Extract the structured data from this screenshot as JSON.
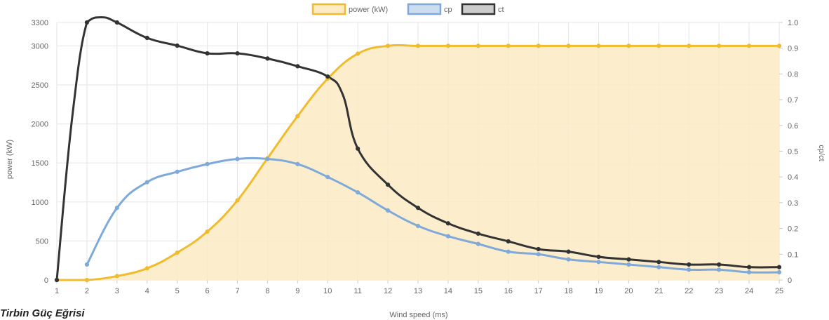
{
  "caption": "Tirbin Güç Eğrisi",
  "colors": {
    "power_line": "#f0bc2e",
    "power_fill": "#fcebc4",
    "cp_line": "#7fa9d8",
    "cp_fill": "#cdddf0",
    "ct_line": "#333333",
    "ct_fill": "#cccccc",
    "grid": "#e5e5e5",
    "text": "#666666"
  },
  "chart_data": {
    "type": "line",
    "xlabel": "Wind speed (ms)",
    "ylabel_left": "power (kW)",
    "ylabel_right": "cp/ct",
    "x": [
      1,
      2,
      3,
      4,
      5,
      6,
      7,
      8,
      9,
      10,
      11,
      12,
      13,
      14,
      15,
      16,
      17,
      18,
      19,
      20,
      21,
      22,
      23,
      24,
      25
    ],
    "x_ticks": [
      "1",
      "2",
      "3",
      "4",
      "5",
      "6",
      "7",
      "8",
      "9",
      "10",
      "11",
      "12",
      "13",
      "14",
      "15",
      "16",
      "17",
      "18",
      "19",
      "20",
      "21",
      "22",
      "23",
      "24",
      "25"
    ],
    "y_left_ticks": [
      0,
      500,
      1000,
      1500,
      2000,
      2500,
      3000,
      3300
    ],
    "y_left_tick_labels": [
      "0",
      "500",
      "1000",
      "1500",
      "2000",
      "2500",
      "3000",
      "3300"
    ],
    "y_left_range": [
      0,
      3300
    ],
    "y_right_ticks": [
      0,
      0.1,
      0.2,
      0.3,
      0.4,
      0.5,
      0.6,
      0.7,
      0.8,
      0.9,
      1.0
    ],
    "y_right_tick_labels": [
      "0",
      "0.1",
      "0.2",
      "0.3",
      "0.4",
      "0.5",
      "0.6",
      "0.7",
      "0.8",
      "0.9",
      "1.0"
    ],
    "y_right_range": [
      0,
      1.0
    ],
    "grid": true,
    "legend_position": "top-center",
    "series": [
      {
        "name": "power (kW)",
        "axis": "left",
        "fill": true,
        "x": [
          1,
          2,
          3,
          4,
          5,
          6,
          7,
          8,
          9,
          10,
          11,
          12,
          13,
          14,
          15,
          16,
          17,
          18,
          19,
          20,
          21,
          22,
          23,
          24,
          25
        ],
        "values": [
          0,
          0,
          50,
          150,
          350,
          620,
          1020,
          1560,
          2100,
          2580,
          2900,
          3000,
          3000,
          3000,
          3000,
          3000,
          3000,
          3000,
          3000,
          3000,
          3000,
          3000,
          3000,
          3000,
          3000
        ]
      },
      {
        "name": "cp",
        "axis": "right",
        "fill": false,
        "x": [
          2,
          3,
          4,
          5,
          6,
          7,
          8,
          9,
          10,
          11,
          12,
          13,
          14,
          15,
          16,
          17,
          18,
          19,
          20,
          21,
          22,
          23,
          24,
          25
        ],
        "values": [
          0.06,
          0.28,
          0.38,
          0.42,
          0.45,
          0.47,
          0.47,
          0.45,
          0.4,
          0.34,
          0.27,
          0.21,
          0.17,
          0.14,
          0.11,
          0.1,
          0.08,
          0.07,
          0.06,
          0.05,
          0.04,
          0.04,
          0.03,
          0.03
        ]
      },
      {
        "name": "ct",
        "axis": "right",
        "fill": false,
        "x": [
          1,
          1.5,
          2,
          2.5,
          3,
          4,
          5,
          6,
          7,
          8,
          9,
          10,
          10.5,
          11,
          12,
          13,
          14,
          15,
          16,
          17,
          18,
          19,
          20,
          21,
          22,
          23,
          24,
          25
        ],
        "values": [
          0,
          0.62,
          1.0,
          1.02,
          1.0,
          0.94,
          0.91,
          0.88,
          0.88,
          0.86,
          0.83,
          0.79,
          0.72,
          0.51,
          0.37,
          0.28,
          0.22,
          0.18,
          0.15,
          0.12,
          0.11,
          0.09,
          0.08,
          0.07,
          0.06,
          0.06,
          0.05,
          0.05
        ]
      }
    ]
  }
}
